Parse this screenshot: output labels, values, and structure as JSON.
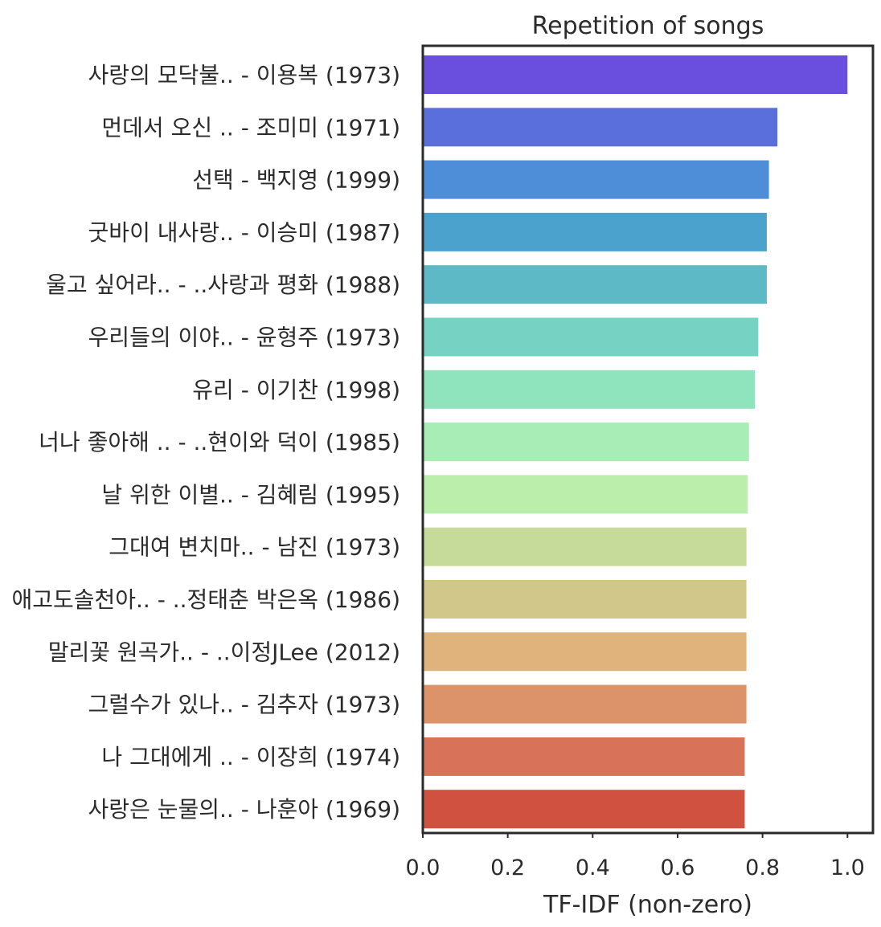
{
  "chart_data": {
    "type": "bar",
    "orientation": "horizontal",
    "title": "Repetition of songs",
    "xlabel": "TF-IDF (non-zero)",
    "ylabel": "",
    "xlim": [
      0.0,
      1.06
    ],
    "xticks": [
      "0.0",
      "0.2",
      "0.4",
      "0.6",
      "0.8",
      "1.0"
    ],
    "grid": false,
    "categories": [
      "사랑의 모닥불.. - 이용복 (1973)",
      "먼데서 오신 .. - 조미미 (1971)",
      "선택 - 백지영 (1999)",
      "굿바이 내사랑.. - 이승미 (1987)",
      "울고 싶어라.. - ..사랑과 평화 (1988)",
      "우리들의 이야.. - 윤형주 (1973)",
      "유리 - 이기찬 (1998)",
      "너나 좋아해 .. - ..현이와 덕이 (1985)",
      "날 위한 이별.. - 김혜림 (1995)",
      "그대여 변치마.. - 남진 (1973)",
      "애고도솔천아.. - ..정태춘 박은옥 (1986)",
      "말리꽃 원곡가.. - ..이정JLee (2012)",
      "그럴수가 있나.. - 김추자 (1973)",
      "나 그대에게 .. - 이장희 (1974)",
      "사랑은 눈물의.. - 나훈아 (1969)"
    ],
    "values": [
      1.0,
      0.835,
      0.815,
      0.81,
      0.81,
      0.79,
      0.782,
      0.768,
      0.765,
      0.762,
      0.762,
      0.762,
      0.762,
      0.758,
      0.758
    ],
    "colors": [
      "#6a4fdf",
      "#5a6fdc",
      "#4e8ed8",
      "#4ba3cd",
      "#5eb9c7",
      "#76d3c3",
      "#8fe3bd",
      "#a7edb5",
      "#bbeeaa",
      "#c6db99",
      "#d2c78a",
      "#e0b27c",
      "#dd936a",
      "#d8735a",
      "#d05140"
    ]
  }
}
